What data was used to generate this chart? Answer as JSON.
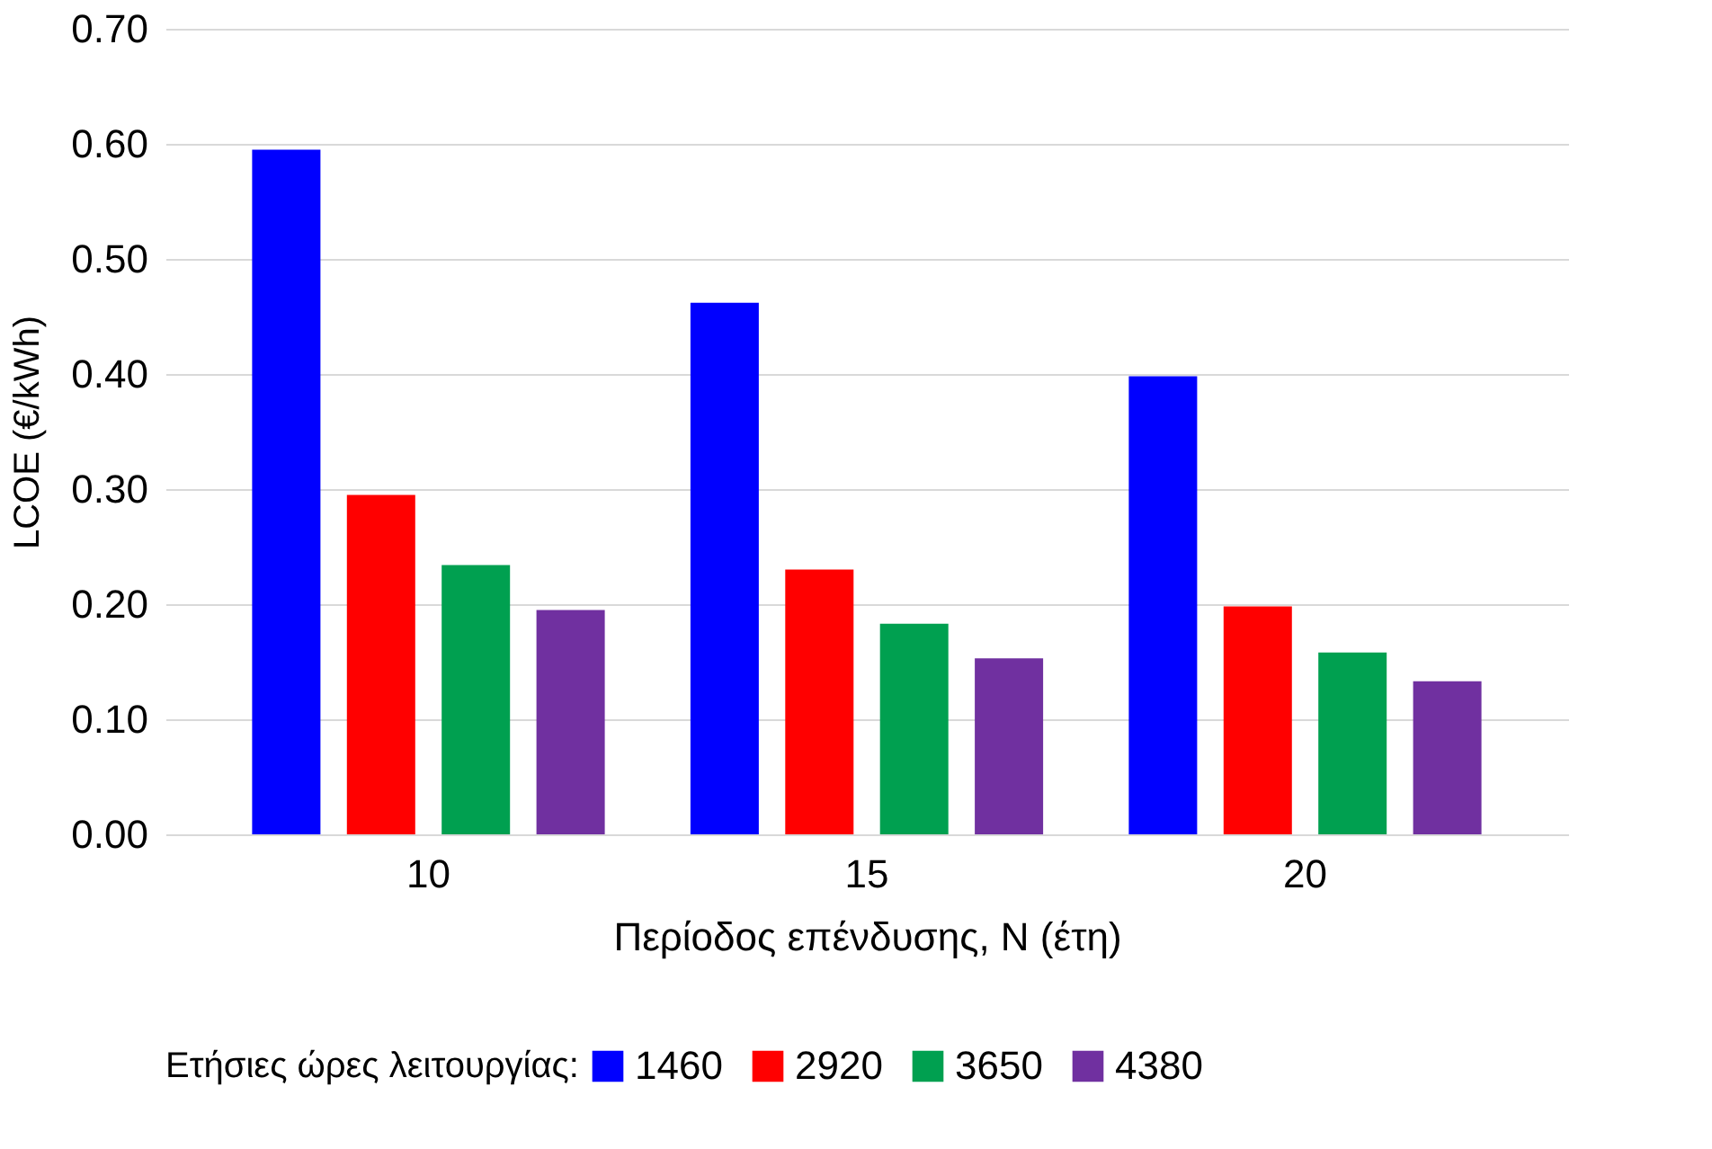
{
  "chart_data": {
    "type": "bar",
    "xlabel": "Περίοδος επένδυσης, N (έτη)",
    "ylabel": "LCOE (€/kWh)",
    "legend_title": "Ετήσιες ώρες λειτουργίας:",
    "categories": [
      "10",
      "15",
      "20"
    ],
    "series": [
      {
        "name": "1460",
        "color": "#0000ff",
        "values": [
          0.595,
          0.462,
          0.398
        ]
      },
      {
        "name": "2920",
        "color": "#ff0000",
        "values": [
          0.295,
          0.23,
          0.198
        ]
      },
      {
        "name": "3650",
        "color": "#00a050",
        "values": [
          0.234,
          0.183,
          0.158
        ]
      },
      {
        "name": "4380",
        "color": "#7030a0",
        "values": [
          0.195,
          0.153,
          0.133
        ]
      }
    ],
    "ylim": [
      0,
      0.7
    ],
    "yticks": [
      {
        "value": 0,
        "label": "0.00"
      },
      {
        "value": 0.1,
        "label": "0.10"
      },
      {
        "value": 0.2,
        "label": "0.20"
      },
      {
        "value": 0.3,
        "label": "0.30"
      },
      {
        "value": 0.4,
        "label": "0.40"
      },
      {
        "value": 0.5,
        "label": "0.50"
      },
      {
        "value": 0.6,
        "label": "0.60"
      },
      {
        "value": 0.7,
        "label": "0.70"
      }
    ],
    "grid": "y",
    "legend": "bottom"
  }
}
